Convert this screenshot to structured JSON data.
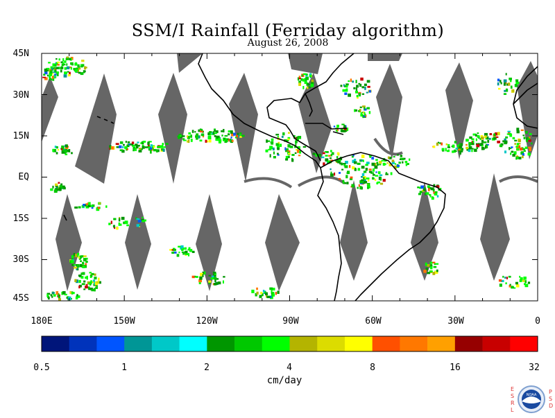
{
  "title": "SSM/I Rainfall (Ferriday algorithm)",
  "subtitle": "August 26, 2008",
  "map": {
    "y_labels": [
      "45N",
      "30N",
      "15N",
      "EQ",
      "15S",
      "30S",
      "45S"
    ],
    "x_labels": [
      "180E",
      "150W",
      "120W",
      "90W",
      "60W",
      "30W",
      "0"
    ],
    "swath_gap_color": "#666666",
    "coastline_color": "#000000"
  },
  "colorbar": {
    "units": "cm/day",
    "tick_labels": [
      "0.5",
      "1",
      "2",
      "4",
      "8",
      "16",
      "32"
    ],
    "colors": [
      "#00157a",
      "#0033bb",
      "#0055ff",
      "#009696",
      "#00c8c8",
      "#00ffff",
      "#009600",
      "#00c800",
      "#00ff00",
      "#b4b400",
      "#dcdc00",
      "#ffff00",
      "#ff5000",
      "#ff7800",
      "#ffa000",
      "#960000",
      "#c80000",
      "#ff0000"
    ]
  },
  "logo": {
    "left_letters": [
      "E",
      "S",
      "R",
      "L"
    ],
    "right_letters": [
      "P",
      "S",
      "D"
    ],
    "seal_text": "NOAA"
  }
}
